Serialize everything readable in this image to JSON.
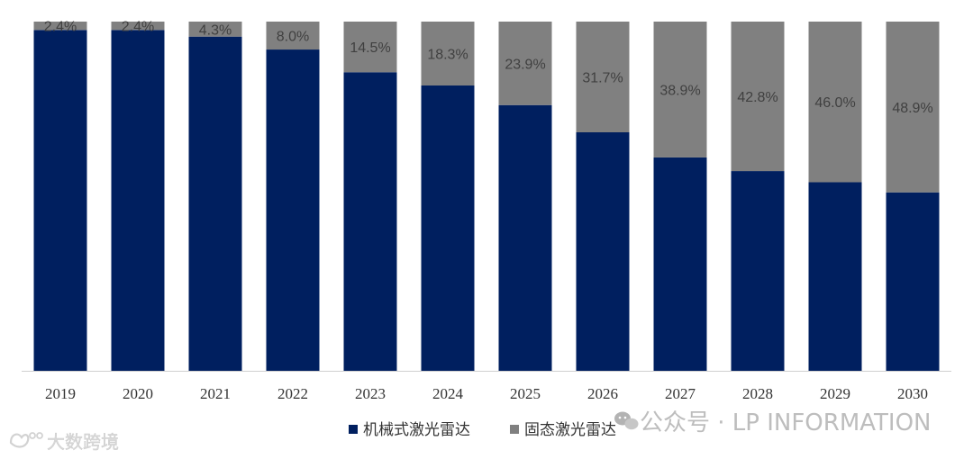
{
  "chart_data": {
    "type": "bar",
    "stacked": true,
    "percent_stacked": true,
    "categories": [
      "2019",
      "2020",
      "2021",
      "2022",
      "2023",
      "2024",
      "2025",
      "2026",
      "2027",
      "2028",
      "2029",
      "2030"
    ],
    "series": [
      {
        "name": "机械式激光雷达",
        "color": "#001f5f",
        "values": [
          97.6,
          97.6,
          95.7,
          92.0,
          85.5,
          81.7,
          76.1,
          68.3,
          61.1,
          57.2,
          54.0,
          51.1
        ]
      },
      {
        "name": "固态激光雷达",
        "color": "#808080",
        "values": [
          2.4,
          2.4,
          4.3,
          8.0,
          14.5,
          18.3,
          23.9,
          31.7,
          38.9,
          42.8,
          46.0,
          48.9
        ],
        "labels": [
          "2.4%",
          "2.4%",
          "4.3%",
          "8.0%",
          "14.5%",
          "18.3%",
          "23.9%",
          "31.7%",
          "38.9%",
          "42.8%",
          "46.0%",
          "48.9%"
        ]
      }
    ],
    "ylim": [
      0,
      100
    ],
    "grid": false,
    "legend_position": "bottom"
  },
  "watermarks": {
    "right": "公众号 · LP INFORMATION",
    "left": "大数跨境"
  }
}
